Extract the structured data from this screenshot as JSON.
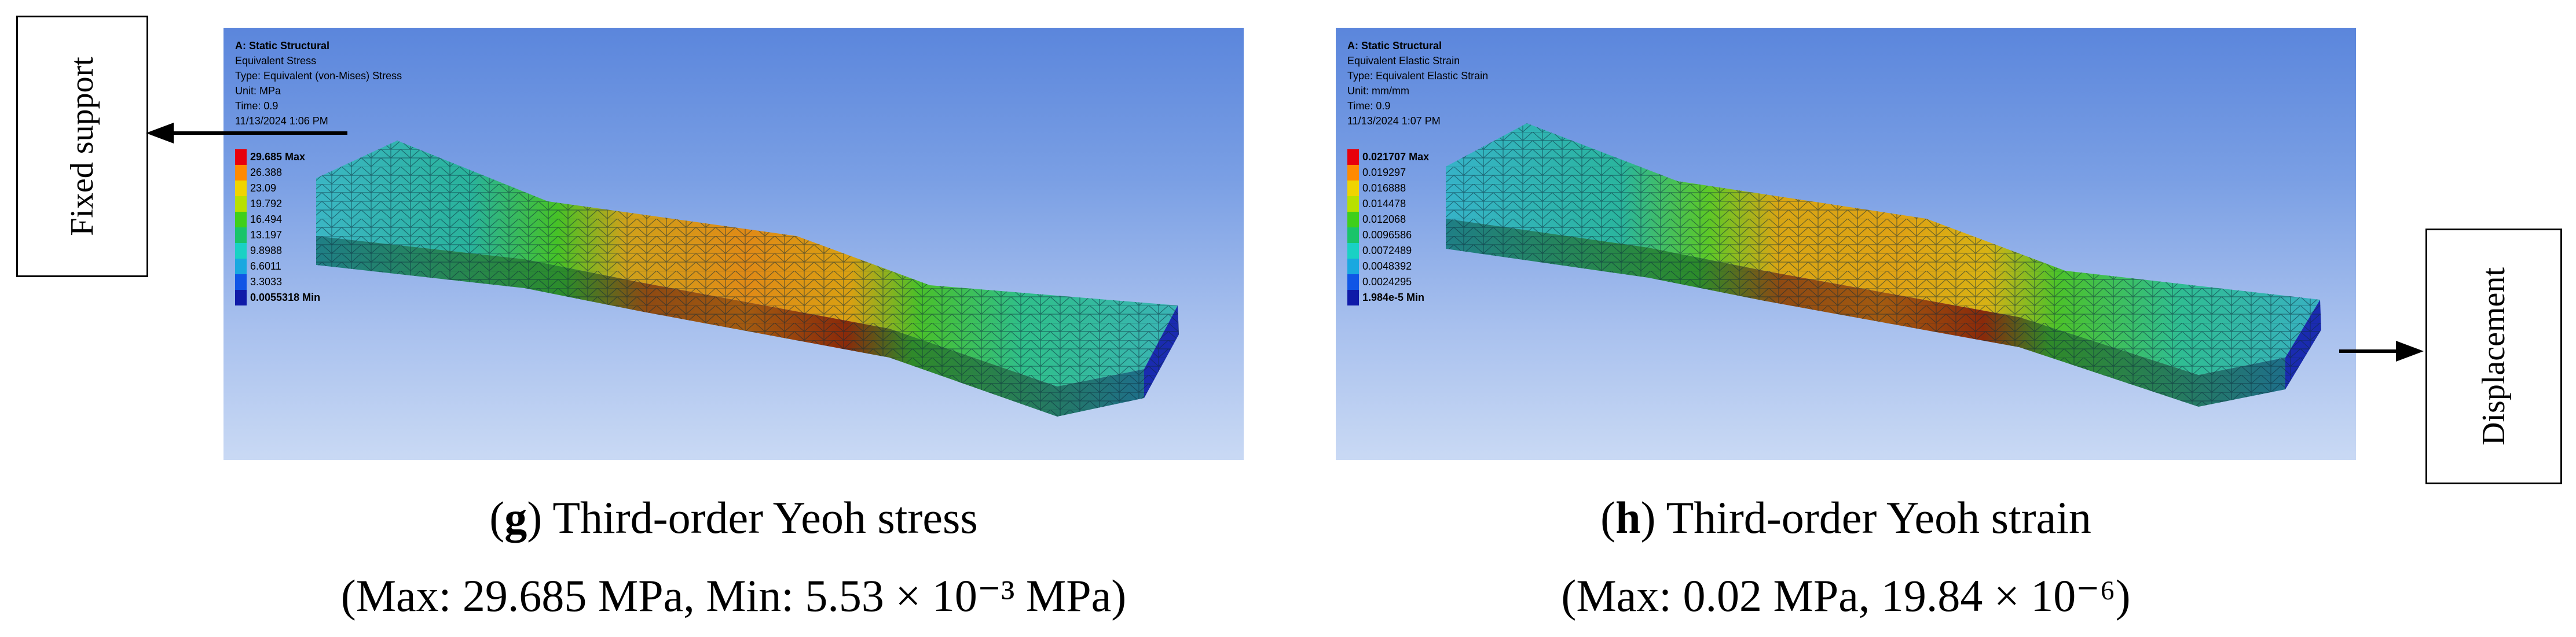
{
  "figure": {
    "fixed_support_label": "Fixed support",
    "displacement_label": "Displacement"
  },
  "panels": [
    {
      "header": {
        "title": "A: Static Structural",
        "result": "Equivalent Stress",
        "type": "Type: Equivalent (von-Mises) Stress",
        "unit": "Unit: MPa",
        "time": "Time: 0.9",
        "date": "11/13/2024 1:06 PM"
      },
      "legend": [
        "29.685 Max",
        "26.388",
        "23.09",
        "19.792",
        "16.494",
        "13.197",
        "9.8988",
        "6.6011",
        "3.3033",
        "0.0055318 Min"
      ],
      "legend_colors": [
        "#e8000b",
        "#ff8a00",
        "#f0d400",
        "#b8e000",
        "#3fcf1a",
        "#19c46a",
        "#1ad1c4",
        "#19a8e0",
        "#1055e6",
        "#0f1aa8"
      ],
      "caption": {
        "letter": "g",
        "line1": ") Third-order Yeoh stress",
        "line2": "(Max: 29.685 MPa, Min: 5.53 × 10⁻³ MPa)"
      }
    },
    {
      "header": {
        "title": "A: Static Structural",
        "result": "Equivalent Elastic Strain",
        "type": "Type: Equivalent Elastic Strain",
        "unit": "Unit: mm/mm",
        "time": "Time: 0.9",
        "date": "11/13/2024 1:07 PM"
      },
      "legend": [
        "0.021707 Max",
        "0.019297",
        "0.016888",
        "0.014478",
        "0.012068",
        "0.0096586",
        "0.0072489",
        "0.0048392",
        "0.0024295",
        "1.984e-5 Min"
      ],
      "legend_colors": [
        "#e8000b",
        "#ff8a00",
        "#f0d400",
        "#b8e000",
        "#3fcf1a",
        "#19c46a",
        "#1ad1c4",
        "#19a8e0",
        "#1055e6",
        "#0f1aa8"
      ],
      "caption": {
        "letter": "h",
        "line1": ") Third-order Yeoh strain",
        "line2": "(Max: 0.02 MPa, 19.84 × 10⁻⁶)"
      }
    }
  ]
}
